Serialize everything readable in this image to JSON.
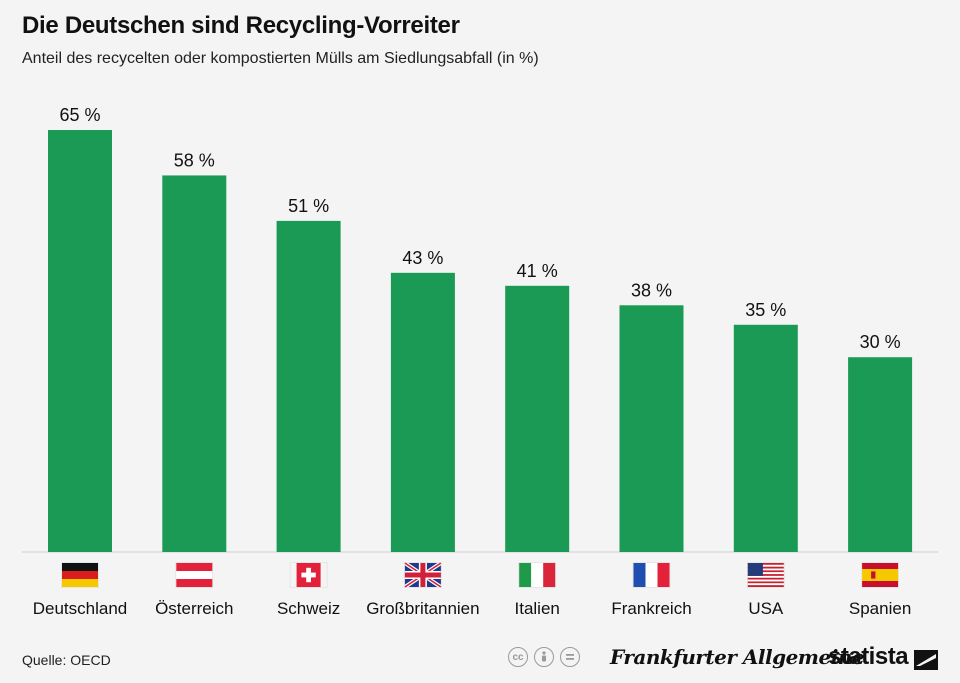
{
  "header": {
    "title": "Die Deutschen sind Recycling-Vorreiter",
    "subtitle": "Anteil des recycelten oder kompostierten Mülls am Siedlungsabfall (in %)"
  },
  "footer": {
    "source": "Quelle: OECD",
    "cc_icons": [
      "cc-icon",
      "by-icon",
      "nd-icon"
    ],
    "publisher_logo": "Frankfurter Allgemeine",
    "brand_logo": "statista"
  },
  "colors": {
    "bar": "#1a9a55",
    "background": "#f4f4f4",
    "baseline": "#cfcfcf"
  },
  "chart_data": {
    "type": "bar",
    "categories": [
      "Deutschland",
      "Österreich",
      "Schweiz",
      "Großbritannien",
      "Italien",
      "Frankreich",
      "USA",
      "Spanien"
    ],
    "values": [
      65,
      58,
      51,
      43,
      41,
      38,
      35,
      30
    ],
    "value_labels": [
      "65 %",
      "58 %",
      "51 %",
      "43 %",
      "41 %",
      "38 %",
      "35 %",
      "30 %"
    ],
    "flag_icons": [
      "flag-germany-icon",
      "flag-austria-icon",
      "flag-switzerland-icon",
      "flag-uk-icon",
      "flag-italy-icon",
      "flag-france-icon",
      "flag-usa-icon",
      "flag-spain-icon"
    ],
    "title": "Die Deutschen sind Recycling-Vorreiter",
    "xlabel": "",
    "ylabel": "",
    "ylim": [
      0,
      65
    ],
    "grid": false,
    "legend": "none"
  }
}
